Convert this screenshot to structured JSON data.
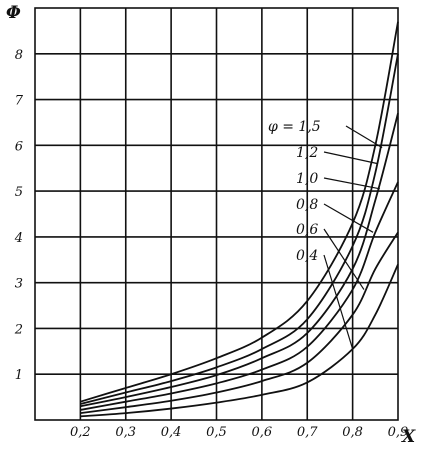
{
  "chart_data": {
    "type": "line",
    "title": "",
    "xlabel": "X",
    "ylabel": "Φ",
    "xlim": [
      0.1,
      0.9
    ],
    "ylim": [
      0,
      9
    ],
    "grid": true,
    "x_ticks": [
      {
        "value": 0.2,
        "label": "0,2"
      },
      {
        "value": 0.3,
        "label": "0,3"
      },
      {
        "value": 0.4,
        "label": "0,4"
      },
      {
        "value": 0.5,
        "label": "0,5"
      },
      {
        "value": 0.6,
        "label": "0,6"
      },
      {
        "value": 0.7,
        "label": "0,7"
      },
      {
        "value": 0.8,
        "label": "0,8"
      },
      {
        "value": 0.9,
        "label": "0,9"
      }
    ],
    "y_ticks": [
      {
        "value": 1,
        "label": "1"
      },
      {
        "value": 2,
        "label": "2"
      },
      {
        "value": 3,
        "label": "3"
      },
      {
        "value": 4,
        "label": "4"
      },
      {
        "value": 5,
        "label": "5"
      },
      {
        "value": 6,
        "label": "6"
      },
      {
        "value": 7,
        "label": "7"
      },
      {
        "value": 8,
        "label": "8"
      }
    ],
    "series": [
      {
        "name": "φ = 1,5",
        "x": [
          0.2,
          0.3,
          0.4,
          0.5,
          0.6,
          0.7,
          0.8,
          0.85,
          0.9
        ],
        "y": [
          0.4,
          0.7,
          1.0,
          1.35,
          1.8,
          2.6,
          4.3,
          6.0,
          8.7
        ]
      },
      {
        "name": "1,2",
        "x": [
          0.2,
          0.3,
          0.4,
          0.5,
          0.6,
          0.7,
          0.8,
          0.85,
          0.9
        ],
        "y": [
          0.35,
          0.6,
          0.85,
          1.15,
          1.55,
          2.2,
          3.8,
          5.4,
          8.0
        ]
      },
      {
        "name": "1,0",
        "x": [
          0.2,
          0.3,
          0.4,
          0.5,
          0.6,
          0.7,
          0.8,
          0.85,
          0.9
        ],
        "y": [
          0.3,
          0.5,
          0.72,
          0.98,
          1.35,
          1.9,
          3.3,
          4.8,
          6.7
        ]
      },
      {
        "name": "0,8",
        "x": [
          0.2,
          0.3,
          0.4,
          0.5,
          0.6,
          0.7,
          0.8,
          0.85,
          0.9
        ],
        "y": [
          0.22,
          0.4,
          0.58,
          0.8,
          1.1,
          1.6,
          2.85,
          4.1,
          5.2
        ]
      },
      {
        "name": "0,6",
        "x": [
          0.2,
          0.3,
          0.4,
          0.5,
          0.6,
          0.7,
          0.8,
          0.85,
          0.9
        ],
        "y": [
          0.15,
          0.28,
          0.42,
          0.6,
          0.85,
          1.25,
          2.3,
          3.3,
          4.1
        ]
      },
      {
        "name": "0,4",
        "x": [
          0.2,
          0.3,
          0.4,
          0.5,
          0.6,
          0.7,
          0.8,
          0.85,
          0.9
        ],
        "y": [
          0.08,
          0.15,
          0.25,
          0.38,
          0.55,
          0.82,
          1.55,
          2.3,
          3.4
        ]
      }
    ]
  }
}
